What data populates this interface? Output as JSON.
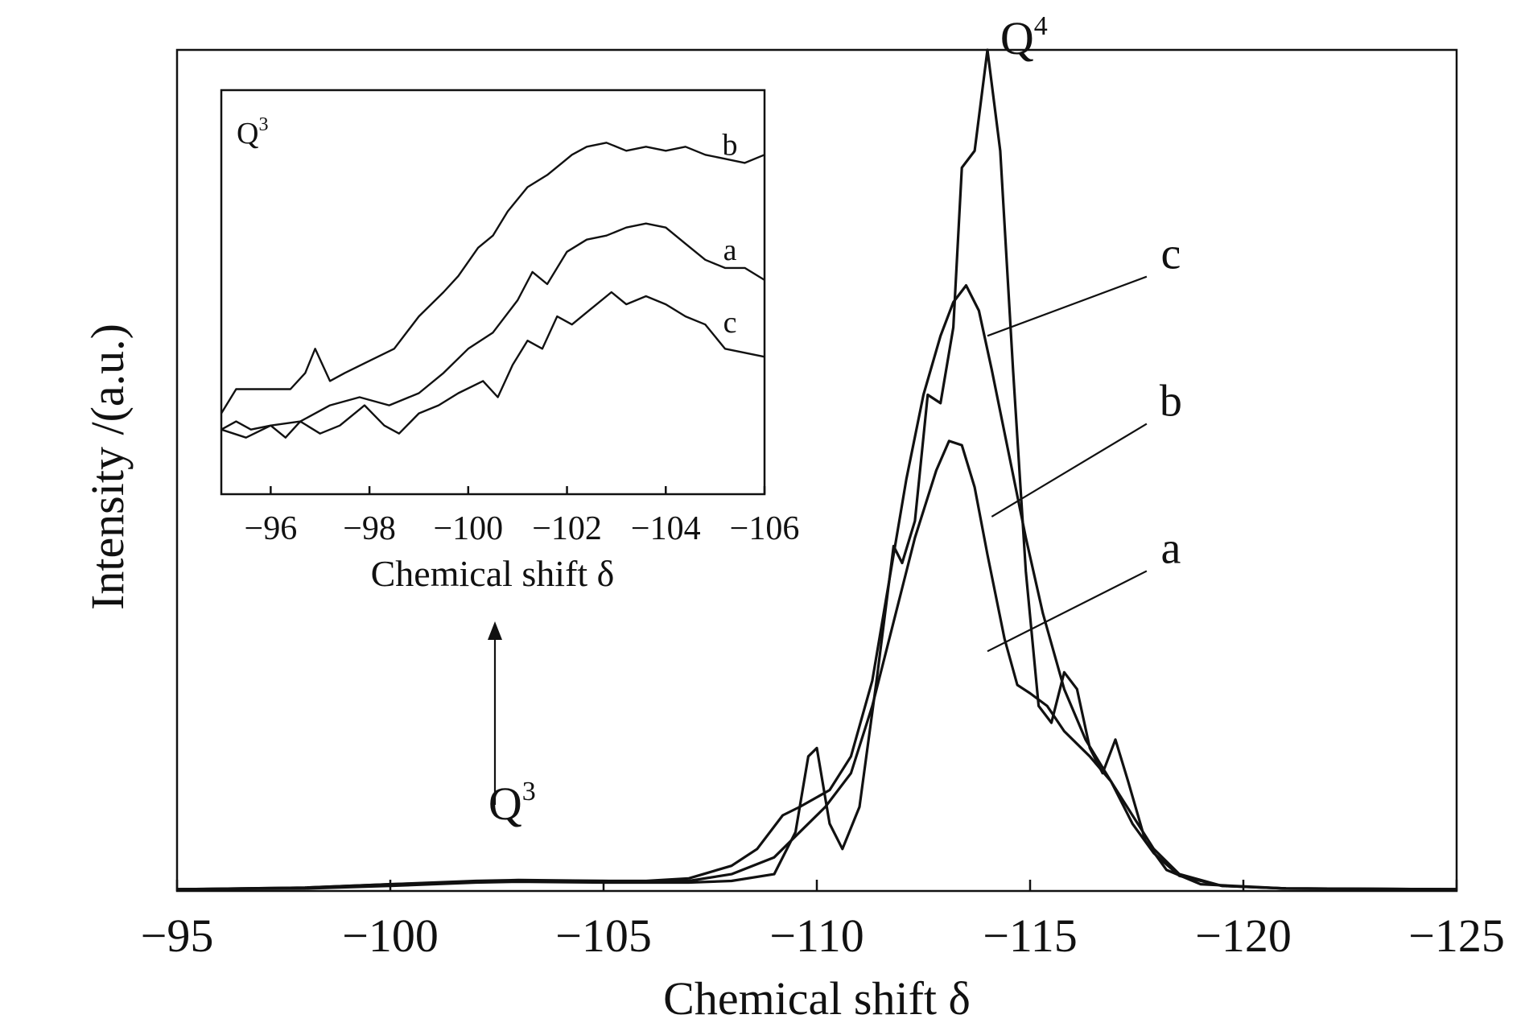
{
  "chart_data": [
    {
      "type": "line",
      "title": "",
      "xlabel": "Chemical shift δ",
      "ylabel": "Intensity /(a.u.)",
      "xlim": [
        -95,
        -125
      ],
      "ylim": [
        0,
        1.0
      ],
      "x_ticks": [
        -95,
        -100,
        -105,
        -110,
        -115,
        -120,
        -125
      ],
      "x_tick_labels": [
        "−95",
        "−100",
        "−105",
        "−110",
        "−115",
        "−120",
        "−125"
      ],
      "y_ticks_shown": false,
      "grid": false,
      "legend": "none (curves labeled directly)",
      "annotations": [
        {
          "text": "Q",
          "sup": "4",
          "x": -114.3,
          "y": 0.995
        },
        {
          "text": "Q",
          "sup": "3",
          "x": -102.3,
          "y": 0.085,
          "arrow": "up to inset"
        }
      ],
      "series": [
        {
          "name": "a",
          "label_x": -118.3,
          "label_y": 0.39,
          "points": [
            [
              -95,
              0.002
            ],
            [
              -98,
              0.004
            ],
            [
              -100,
              0.008
            ],
            [
              -102,
              0.012
            ],
            [
              -103,
              0.013
            ],
            [
              -105,
              0.012
            ],
            [
              -106,
              0.011
            ],
            [
              -107,
              0.012
            ],
            [
              -108,
              0.02
            ],
            [
              -109,
              0.04
            ],
            [
              -109.6,
              0.07
            ],
            [
              -110.2,
              0.1
            ],
            [
              -110.8,
              0.14
            ],
            [
              -111.3,
              0.22
            ],
            [
              -111.8,
              0.32
            ],
            [
              -112.3,
              0.42
            ],
            [
              -112.8,
              0.5
            ],
            [
              -113.1,
              0.535
            ],
            [
              -113.4,
              0.53
            ],
            [
              -113.7,
              0.48
            ],
            [
              -114,
              0.4
            ],
            [
              -114.4,
              0.3
            ],
            [
              -114.7,
              0.245
            ],
            [
              -115,
              0.235
            ],
            [
              -115.4,
              0.22
            ],
            [
              -115.8,
              0.19
            ],
            [
              -116.4,
              0.16
            ],
            [
              -116.9,
              0.13
            ],
            [
              -117.4,
              0.09
            ],
            [
              -117.9,
              0.05
            ],
            [
              -118.5,
              0.02
            ],
            [
              -119.5,
              0.006
            ],
            [
              -121,
              0.003
            ],
            [
              -125,
              0.002
            ]
          ]
        },
        {
          "name": "b",
          "label_x": -118.3,
          "label_y": 0.565,
          "points": [
            [
              -95,
              0.002
            ],
            [
              -98,
              0.004
            ],
            [
              -100,
              0.008
            ],
            [
              -102,
              0.011
            ],
            [
              -103,
              0.012
            ],
            [
              -105,
              0.012
            ],
            [
              -106,
              0.012
            ],
            [
              -107,
              0.015
            ],
            [
              -108,
              0.03
            ],
            [
              -108.6,
              0.05
            ],
            [
              -109.2,
              0.09
            ],
            [
              -109.6,
              0.1
            ],
            [
              -110.3,
              0.12
            ],
            [
              -110.8,
              0.16
            ],
            [
              -111.3,
              0.25
            ],
            [
              -111.7,
              0.37
            ],
            [
              -112.1,
              0.49
            ],
            [
              -112.5,
              0.59
            ],
            [
              -112.9,
              0.66
            ],
            [
              -113.2,
              0.7
            ],
            [
              -113.5,
              0.72
            ],
            [
              -113.8,
              0.69
            ],
            [
              -114.1,
              0.62
            ],
            [
              -114.5,
              0.52
            ],
            [
              -114.9,
              0.42
            ],
            [
              -115.3,
              0.33
            ],
            [
              -115.8,
              0.24
            ],
            [
              -116.3,
              0.18
            ],
            [
              -116.9,
              0.13
            ],
            [
              -117.4,
              0.08
            ],
            [
              -117.9,
              0.045
            ],
            [
              -118.5,
              0.018
            ],
            [
              -119.5,
              0.006
            ],
            [
              -121,
              0.003
            ],
            [
              -125,
              0.002
            ]
          ]
        },
        {
          "name": "c",
          "label_x": -118.3,
          "label_y": 0.74,
          "points": [
            [
              -95,
              0.002
            ],
            [
              -98,
              0.003
            ],
            [
              -100,
              0.006
            ],
            [
              -102,
              0.01
            ],
            [
              -103,
              0.011
            ],
            [
              -105,
              0.01
            ],
            [
              -107,
              0.01
            ],
            [
              -108,
              0.012
            ],
            [
              -109,
              0.02
            ],
            [
              -109.5,
              0.07
            ],
            [
              -109.8,
              0.16
            ],
            [
              -110.0,
              0.17
            ],
            [
              -110.3,
              0.08
            ],
            [
              -110.6,
              0.05
            ],
            [
              -111.0,
              0.1
            ],
            [
              -111.4,
              0.25
            ],
            [
              -111.8,
              0.41
            ],
            [
              -112.0,
              0.39
            ],
            [
              -112.3,
              0.44
            ],
            [
              -112.6,
              0.59
            ],
            [
              -112.9,
              0.58
            ],
            [
              -113.2,
              0.67
            ],
            [
              -113.4,
              0.86
            ],
            [
              -113.7,
              0.88
            ],
            [
              -114.0,
              1.0
            ],
            [
              -114.3,
              0.88
            ],
            [
              -114.6,
              0.62
            ],
            [
              -114.9,
              0.38
            ],
            [
              -115.2,
              0.22
            ],
            [
              -115.5,
              0.2
            ],
            [
              -115.8,
              0.26
            ],
            [
              -116.1,
              0.24
            ],
            [
              -116.4,
              0.17
            ],
            [
              -116.7,
              0.14
            ],
            [
              -117.0,
              0.18
            ],
            [
              -117.3,
              0.13
            ],
            [
              -117.7,
              0.06
            ],
            [
              -118.2,
              0.025
            ],
            [
              -119.0,
              0.008
            ],
            [
              -121,
              0.003
            ],
            [
              -125,
              0.002
            ]
          ]
        }
      ]
    },
    {
      "type": "line",
      "title": "",
      "label": "Q",
      "label_sup": "3",
      "xlabel": "Chemical shift δ",
      "ylabel": "",
      "xlim": [
        -95,
        -106
      ],
      "ylim": [
        0,
        1.0
      ],
      "x_ticks": [
        -96,
        -98,
        -100,
        -102,
        -104,
        -106
      ],
      "x_tick_labels": [
        "−96",
        "−98",
        "−100",
        "−102",
        "−104",
        "−106"
      ],
      "grid": false,
      "series": [
        {
          "name": "b",
          "label_x": -105.3,
          "label_y": 0.84,
          "points": [
            [
              -95,
              0.2
            ],
            [
              -95.3,
              0.26
            ],
            [
              -95.8,
              0.26
            ],
            [
              -96.4,
              0.26
            ],
            [
              -96.7,
              0.3
            ],
            [
              -96.9,
              0.36
            ],
            [
              -97.2,
              0.28
            ],
            [
              -97.5,
              0.3
            ],
            [
              -98,
              0.33
            ],
            [
              -98.5,
              0.36
            ],
            [
              -99,
              0.44
            ],
            [
              -99.5,
              0.5
            ],
            [
              -99.8,
              0.54
            ],
            [
              -100.2,
              0.61
            ],
            [
              -100.5,
              0.64
            ],
            [
              -100.8,
              0.7
            ],
            [
              -101.2,
              0.76
            ],
            [
              -101.6,
              0.79
            ],
            [
              -101.9,
              0.82
            ],
            [
              -102.1,
              0.84
            ],
            [
              -102.4,
              0.86
            ],
            [
              -102.8,
              0.87
            ],
            [
              -103.2,
              0.85
            ],
            [
              -103.6,
              0.86
            ],
            [
              -104,
              0.85
            ],
            [
              -104.4,
              0.86
            ],
            [
              -104.8,
              0.84
            ],
            [
              -105.2,
              0.83
            ],
            [
              -105.6,
              0.82
            ],
            [
              -106,
              0.84
            ]
          ]
        },
        {
          "name": "a",
          "label_x": -105.3,
          "label_y": 0.58,
          "points": [
            [
              -95,
              0.16
            ],
            [
              -95.5,
              0.14
            ],
            [
              -96,
              0.17
            ],
            [
              -96.6,
              0.18
            ],
            [
              -97.2,
              0.22
            ],
            [
              -97.8,
              0.24
            ],
            [
              -98.4,
              0.22
            ],
            [
              -99,
              0.25
            ],
            [
              -99.5,
              0.3
            ],
            [
              -100,
              0.36
            ],
            [
              -100.5,
              0.4
            ],
            [
              -101,
              0.48
            ],
            [
              -101.3,
              0.55
            ],
            [
              -101.6,
              0.52
            ],
            [
              -102,
              0.6
            ],
            [
              -102.4,
              0.63
            ],
            [
              -102.8,
              0.64
            ],
            [
              -103.2,
              0.66
            ],
            [
              -103.6,
              0.67
            ],
            [
              -104,
              0.66
            ],
            [
              -104.4,
              0.62
            ],
            [
              -104.8,
              0.58
            ],
            [
              -105.2,
              0.56
            ],
            [
              -105.6,
              0.56
            ],
            [
              -106,
              0.53
            ]
          ]
        },
        {
          "name": "c",
          "label_x": -105.3,
          "label_y": 0.4,
          "points": [
            [
              -95,
              0.16
            ],
            [
              -95.3,
              0.18
            ],
            [
              -95.6,
              0.16
            ],
            [
              -96,
              0.17
            ],
            [
              -96.3,
              0.14
            ],
            [
              -96.6,
              0.18
            ],
            [
              -97,
              0.15
            ],
            [
              -97.4,
              0.17
            ],
            [
              -97.9,
              0.22
            ],
            [
              -98.3,
              0.17
            ],
            [
              -98.6,
              0.15
            ],
            [
              -99,
              0.2
            ],
            [
              -99.4,
              0.22
            ],
            [
              -99.8,
              0.25
            ],
            [
              -100.3,
              0.28
            ],
            [
              -100.6,
              0.24
            ],
            [
              -100.9,
              0.32
            ],
            [
              -101.2,
              0.38
            ],
            [
              -101.5,
              0.36
            ],
            [
              -101.8,
              0.44
            ],
            [
              -102.1,
              0.42
            ],
            [
              -102.5,
              0.46
            ],
            [
              -102.9,
              0.5
            ],
            [
              -103.2,
              0.47
            ],
            [
              -103.6,
              0.49
            ],
            [
              -104,
              0.47
            ],
            [
              -104.4,
              0.44
            ],
            [
              -104.8,
              0.42
            ],
            [
              -105.2,
              0.36
            ],
            [
              -105.6,
              0.35
            ],
            [
              -106,
              0.34
            ]
          ]
        }
      ]
    }
  ]
}
